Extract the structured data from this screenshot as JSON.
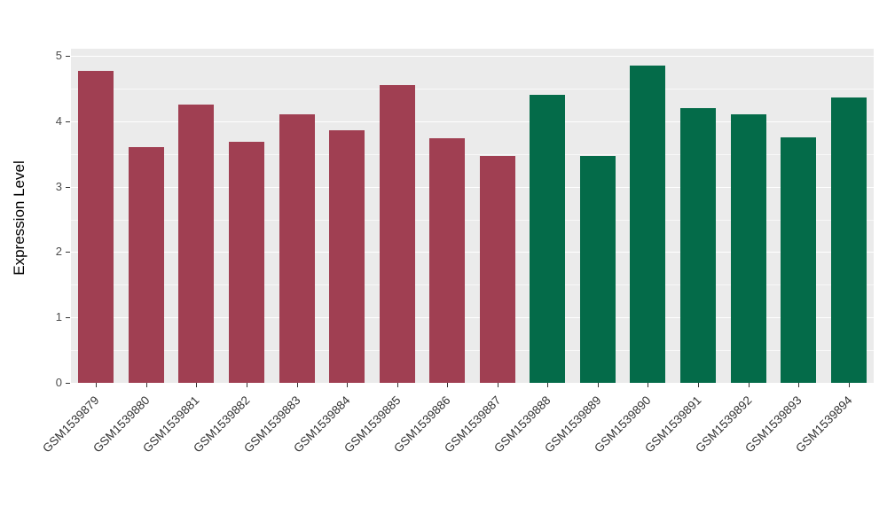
{
  "chart_data": {
    "type": "bar",
    "title": "",
    "xlabel": "",
    "ylabel": "Expression Level",
    "ylim": [
      0,
      5
    ],
    "yticks": [
      0,
      1,
      2,
      3,
      4,
      5
    ],
    "minor_gridlines": [
      0.5,
      1.5,
      2.5,
      3.5,
      4.5
    ],
    "grid": "on",
    "legend": "none",
    "panel_background": "#EBEBEB",
    "gridline_color": "#FFFFFF",
    "categories": [
      "GSM1539879",
      "GSM1539880",
      "GSM1539881",
      "GSM1539882",
      "GSM1539883",
      "GSM1539884",
      "GSM1539885",
      "GSM1539886",
      "GSM1539887",
      "GSM1539888",
      "GSM1539889",
      "GSM1539890",
      "GSM1539891",
      "GSM1539892",
      "GSM1539893",
      "GSM1539894"
    ],
    "values": [
      4.77,
      3.6,
      4.25,
      3.68,
      4.1,
      3.86,
      4.55,
      3.74,
      3.47,
      4.4,
      3.47,
      4.85,
      4.2,
      4.1,
      3.75,
      4.37
    ],
    "bar_colors": [
      "#A03F52",
      "#A03F52",
      "#A03F52",
      "#A03F52",
      "#A03F52",
      "#A03F52",
      "#A03F52",
      "#A03F52",
      "#A03F52",
      "#046B49",
      "#046B49",
      "#046B49",
      "#046B49",
      "#046B49",
      "#046B49",
      "#046B49"
    ],
    "group_colors": {
      "group1": "#A03F52",
      "group2": "#046B49"
    }
  }
}
